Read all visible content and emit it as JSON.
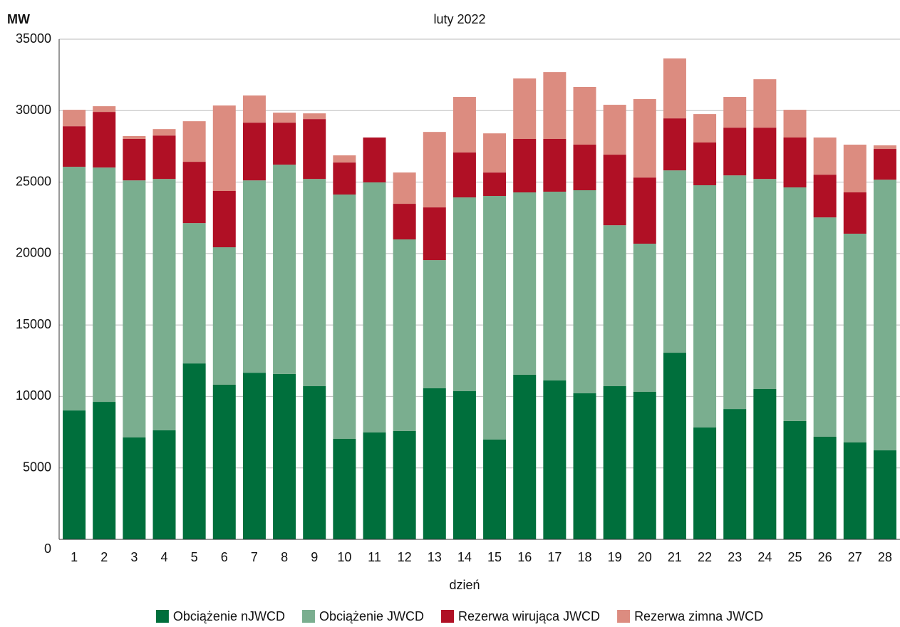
{
  "chart_data": {
    "type": "stacked_bar",
    "title": "luty 2022",
    "y_label": "MW",
    "x_label": "dzień",
    "categories": [
      "1",
      "2",
      "3",
      "4",
      "5",
      "6",
      "7",
      "8",
      "9",
      "10",
      "11",
      "12",
      "13",
      "14",
      "15",
      "16",
      "17",
      "18",
      "19",
      "20",
      "21",
      "22",
      "23",
      "24",
      "25",
      "26",
      "27",
      "28"
    ],
    "series": [
      {
        "name": "Obciążenie nJWCD",
        "color": "#006f3c",
        "values": [
          9020,
          9620,
          7130,
          7630,
          12310,
          10820,
          11660,
          11570,
          10720,
          7030,
          7480,
          7580,
          10570,
          10370,
          6980,
          11520,
          11120,
          10220,
          10720,
          10320,
          13060,
          7830,
          9120,
          10520,
          8280,
          7180,
          6780,
          6230
        ]
      },
      {
        "name": "Obciążenie JWCD",
        "color": "#7aae8f",
        "values": [
          17050,
          16400,
          17990,
          17590,
          9820,
          9620,
          13460,
          14650,
          14500,
          17100,
          17500,
          13410,
          8970,
          13560,
          17050,
          12760,
          13210,
          14210,
          11260,
          10370,
          12760,
          16950,
          16350,
          14700,
          16350,
          15350,
          14610,
          18940
        ]
      },
      {
        "name": "Rezerwa wirująca JWCD",
        "color": "#b01025",
        "values": [
          2840,
          3890,
          2900,
          3040,
          4290,
          3940,
          4040,
          2940,
          4190,
          2240,
          3140,
          2490,
          3690,
          3140,
          1640,
          3740,
          3690,
          3190,
          4940,
          4630,
          3640,
          2990,
          3340,
          3590,
          3490,
          2990,
          2890,
          2150
        ]
      },
      {
        "name": "Rezerwa zimna JWCD",
        "color": "#dc8c80",
        "values": [
          1150,
          400,
          200,
          450,
          2840,
          5980,
          1900,
          700,
          400,
          500,
          0,
          2190,
          5280,
          3890,
          2740,
          4230,
          4680,
          4040,
          3490,
          5490,
          4190,
          1990,
          2150,
          3390,
          1940,
          2600,
          3340,
          250
        ]
      }
    ],
    "ylim": [
      0,
      35000
    ],
    "yticks": [
      0,
      5000,
      10000,
      15000,
      20000,
      25000,
      30000,
      35000
    ],
    "grid": true
  }
}
